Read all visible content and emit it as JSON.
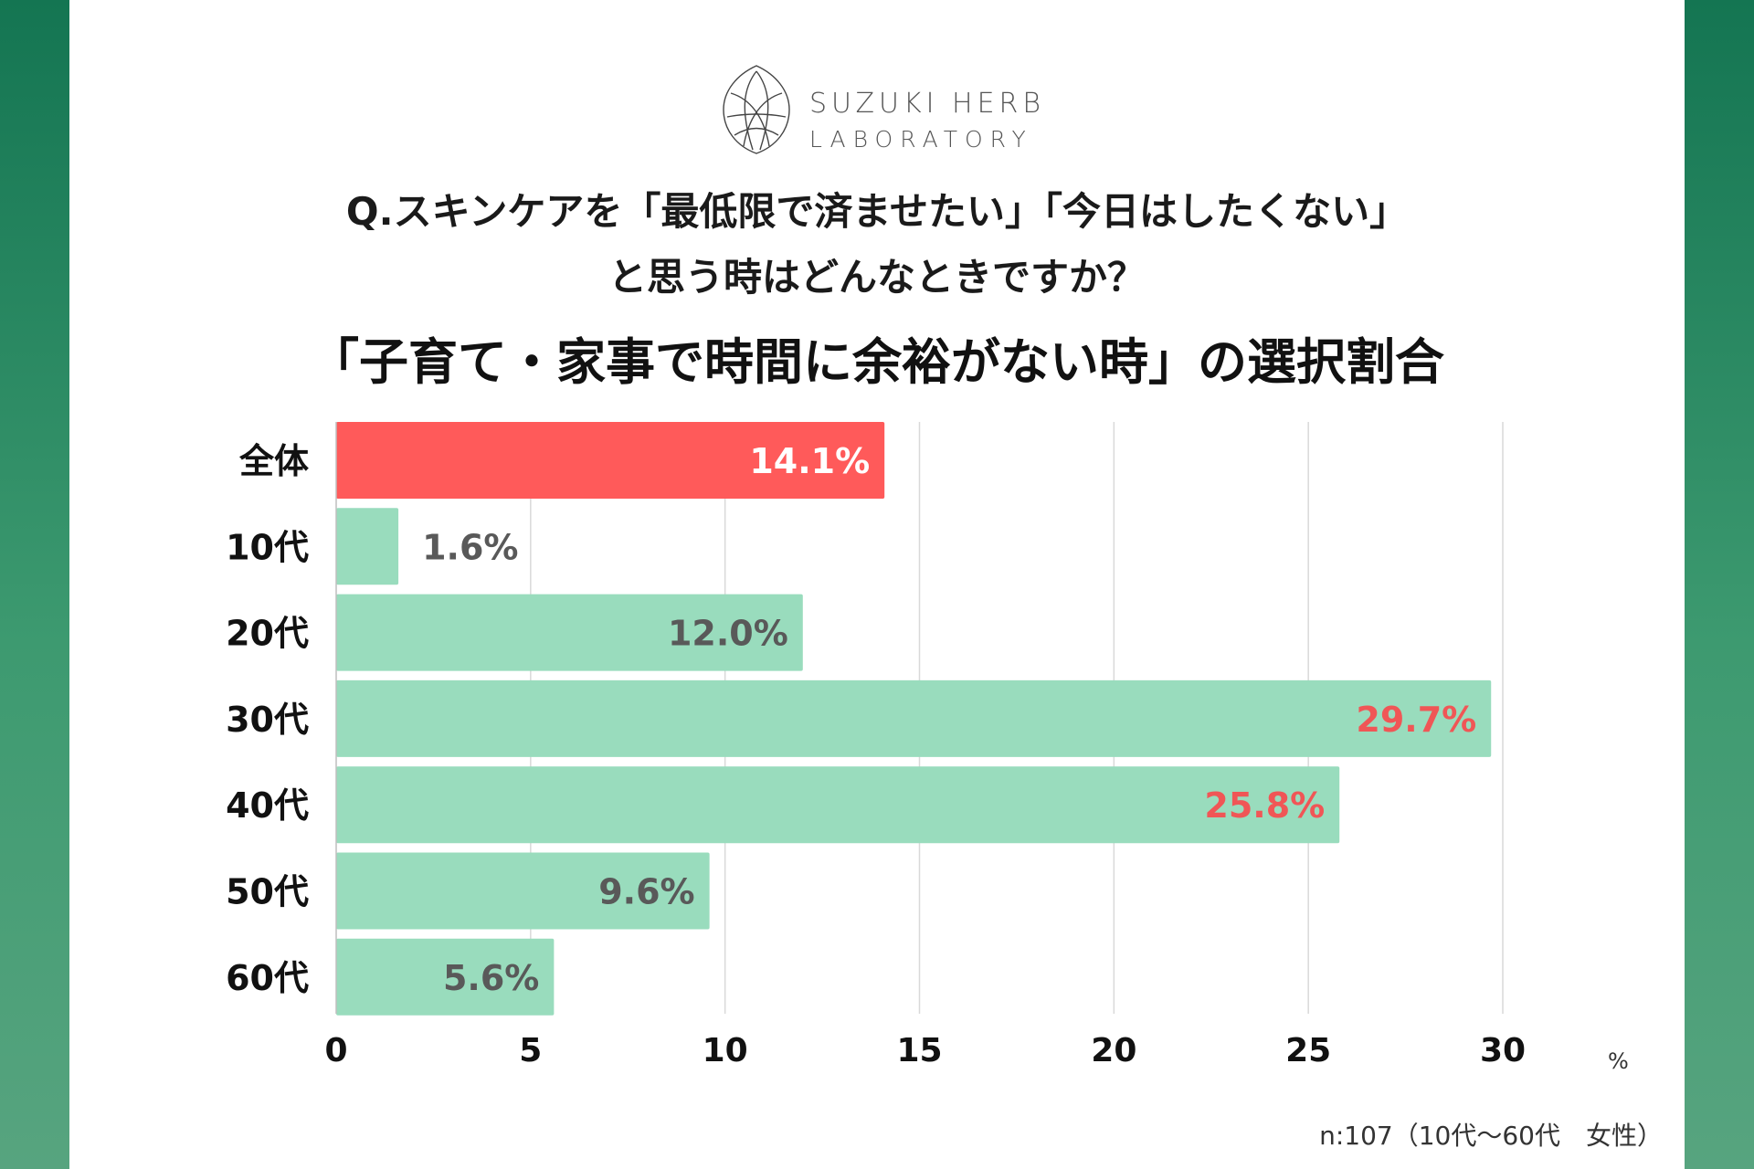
{
  "brand": {
    "line1": "SUZUKI HERB",
    "line2": "LABORATORY"
  },
  "question": {
    "line1": "Q.スキンケアを「最低限で済ませたい」「今日はしたくない」",
    "line2": "と思う時はどんなときですか？"
  },
  "headline": "「子育て・家事で時間に余裕がない時」の選択割合",
  "unit_label": "%",
  "footnote": "n:107（10代〜60代　女性）",
  "colors": {
    "highlight_bar": "#ff5a5a",
    "bar": "#99dcbd",
    "label_dark": "#595959",
    "label_red": "#f05656",
    "label_white": "#ffffff",
    "grid": "#d9d9d9",
    "axis_text": "#111111",
    "background_green": "#147552"
  },
  "chart_data": {
    "type": "bar",
    "orientation": "horizontal",
    "categories": [
      "全体",
      "10代",
      "20代",
      "30代",
      "40代",
      "50代",
      "60代"
    ],
    "values": [
      14.1,
      1.6,
      12.0,
      29.7,
      25.8,
      9.6,
      5.6
    ],
    "value_labels": [
      "14.1%",
      "1.6%",
      "12.0%",
      "29.7%",
      "25.8%",
      "9.6%",
      "5.6%"
    ],
    "highlight_category": "全体",
    "emphasized_labels": [
      "30代",
      "40代"
    ],
    "xlim": [
      0,
      30
    ],
    "x_ticks": [
      0,
      5,
      10,
      15,
      20,
      25,
      30
    ],
    "grid": "vertical",
    "legend": "none"
  }
}
